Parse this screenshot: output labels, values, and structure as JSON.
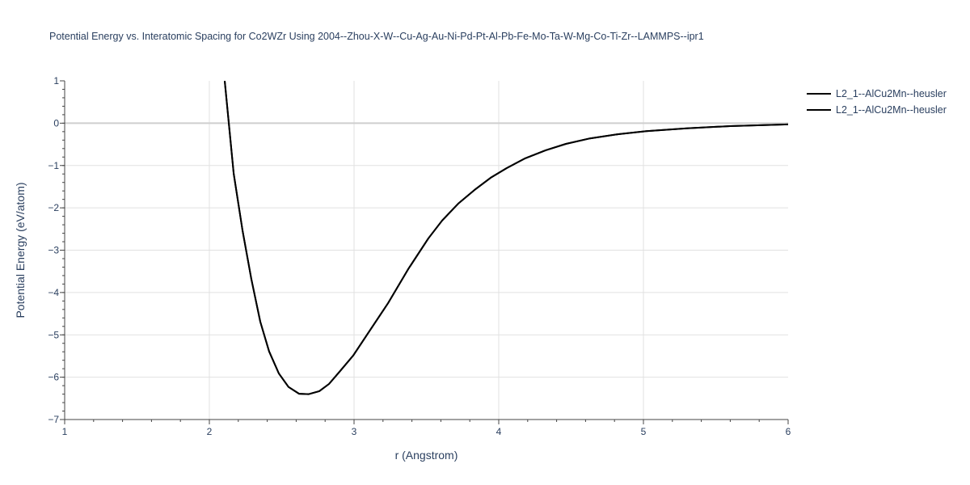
{
  "chart_data": {
    "type": "line",
    "title": "Potential Energy vs. Interatomic Spacing for Co2WZr Using 2004--Zhou-X-W--Cu-Ag-Au-Ni-Pd-Pt-Al-Pb-Fe-Mo-Ta-W-Mg-Co-Ti-Zr--LAMMPS--ipr1",
    "xlabel": "r (Angstrom)",
    "ylabel": "Potential Energy (eV/atom)",
    "xlim": [
      1,
      6
    ],
    "ylim": [
      -7,
      1
    ],
    "xticks": [
      1,
      2,
      3,
      4,
      5,
      6
    ],
    "yticks": [
      1,
      0,
      -1,
      -2,
      -3,
      -4,
      -5,
      -6,
      -7
    ],
    "ytick_labels": [
      "1",
      "0",
      "−1",
      "−2",
      "−3",
      "−4",
      "−5",
      "−6",
      "−7"
    ],
    "grid": true,
    "legend_position": "top-right outside",
    "series": [
      {
        "name": "L2_1--AlCu2Mn--heusler",
        "color": "#000000",
        "x": [
          2.106,
          2.168,
          2.229,
          2.29,
          2.352,
          2.413,
          2.48,
          2.547,
          2.62,
          2.687,
          2.76,
          2.827,
          2.9,
          2.994,
          3.095,
          3.235,
          3.374,
          3.514,
          3.609,
          3.72,
          3.832,
          3.944,
          4.056,
          4.184,
          4.324,
          4.464,
          4.631,
          4.827,
          5.02,
          5.3,
          5.6,
          6.0
        ],
        "y": [
          1.0,
          -1.19,
          -2.53,
          -3.68,
          -4.69,
          -5.39,
          -5.91,
          -6.23,
          -6.39,
          -6.4,
          -6.33,
          -6.16,
          -5.87,
          -5.49,
          -4.97,
          -4.25,
          -3.45,
          -2.72,
          -2.3,
          -1.9,
          -1.58,
          -1.29,
          -1.06,
          -0.83,
          -0.64,
          -0.49,
          -0.36,
          -0.26,
          -0.19,
          -0.12,
          -0.07,
          -0.03
        ]
      },
      {
        "name": "L2_1--AlCu2Mn--heusler",
        "color": "#000000",
        "x": [
          2.106,
          2.168,
          2.229,
          2.29,
          2.352,
          2.413,
          2.48,
          2.547,
          2.62,
          2.687,
          2.76,
          2.827,
          2.9,
          2.994,
          3.095,
          3.235,
          3.374,
          3.514,
          3.609,
          3.72,
          3.832,
          3.944,
          4.056,
          4.184,
          4.324,
          4.464,
          4.631,
          4.827,
          5.02,
          5.3,
          5.6,
          6.0
        ],
        "y": [
          1.0,
          -1.19,
          -2.53,
          -3.68,
          -4.69,
          -5.39,
          -5.91,
          -6.23,
          -6.39,
          -6.4,
          -6.33,
          -6.16,
          -5.87,
          -5.49,
          -4.97,
          -4.25,
          -3.45,
          -2.72,
          -2.3,
          -1.9,
          -1.58,
          -1.29,
          -1.06,
          -0.83,
          -0.64,
          -0.49,
          -0.36,
          -0.26,
          -0.19,
          -0.12,
          -0.07,
          -0.03
        ]
      }
    ]
  }
}
